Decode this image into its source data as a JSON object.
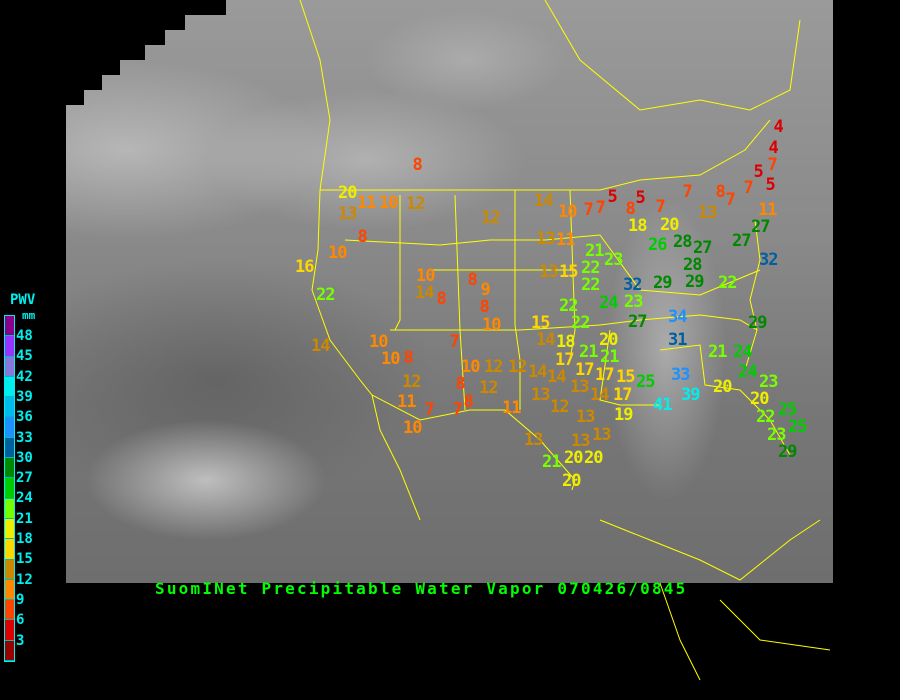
{
  "title": "SuomINet Precipitable Water Vapor 070426/0845",
  "legend": {
    "title": "PWV",
    "unit": "mm",
    "labels": [
      "48",
      "45",
      "42",
      "39",
      "36",
      "33",
      "30",
      "27",
      "24",
      "21",
      "18",
      "15",
      "12",
      "9",
      "6",
      "3"
    ],
    "colors": [
      "#8b008b",
      "#9933ff",
      "#8877dd",
      "#00eeee",
      "#00bbee",
      "#1e90ff",
      "#005f9f",
      "#008800",
      "#00cc00",
      "#77ff00",
      "#eeee00",
      "#ffd700",
      "#cc8800",
      "#ff8800",
      "#ff4400",
      "#dd0000",
      "#990000"
    ]
  },
  "stations": [
    8,
    20,
    11,
    10,
    12,
    13,
    8,
    10,
    16,
    22,
    10,
    14,
    8,
    8,
    9,
    8,
    10,
    14,
    10,
    10,
    8,
    7,
    12,
    11,
    7,
    10,
    8,
    12,
    12,
    14,
    12,
    8,
    7,
    11,
    10,
    13,
    21,
    20,
    20,
    12,
    14,
    10,
    7,
    13,
    11,
    13,
    15,
    22,
    15,
    14,
    18,
    17,
    21,
    22,
    22,
    13,
    14,
    17,
    13,
    12,
    13,
    13,
    24,
    23,
    27,
    34,
    31,
    20,
    21,
    17,
    15,
    14,
    17,
    25,
    33,
    41,
    39,
    19,
    13,
    20,
    29,
    21,
    24,
    24,
    23,
    20,
    20,
    22,
    25,
    23,
    25,
    29,
    4,
    4,
    7,
    5,
    5,
    7,
    8,
    7,
    7,
    5,
    5,
    8,
    7,
    7,
    18,
    20,
    13,
    11,
    27,
    27,
    28,
    26,
    27,
    28,
    29,
    32,
    29,
    32,
    22,
    22,
    23,
    21
  ]
}
